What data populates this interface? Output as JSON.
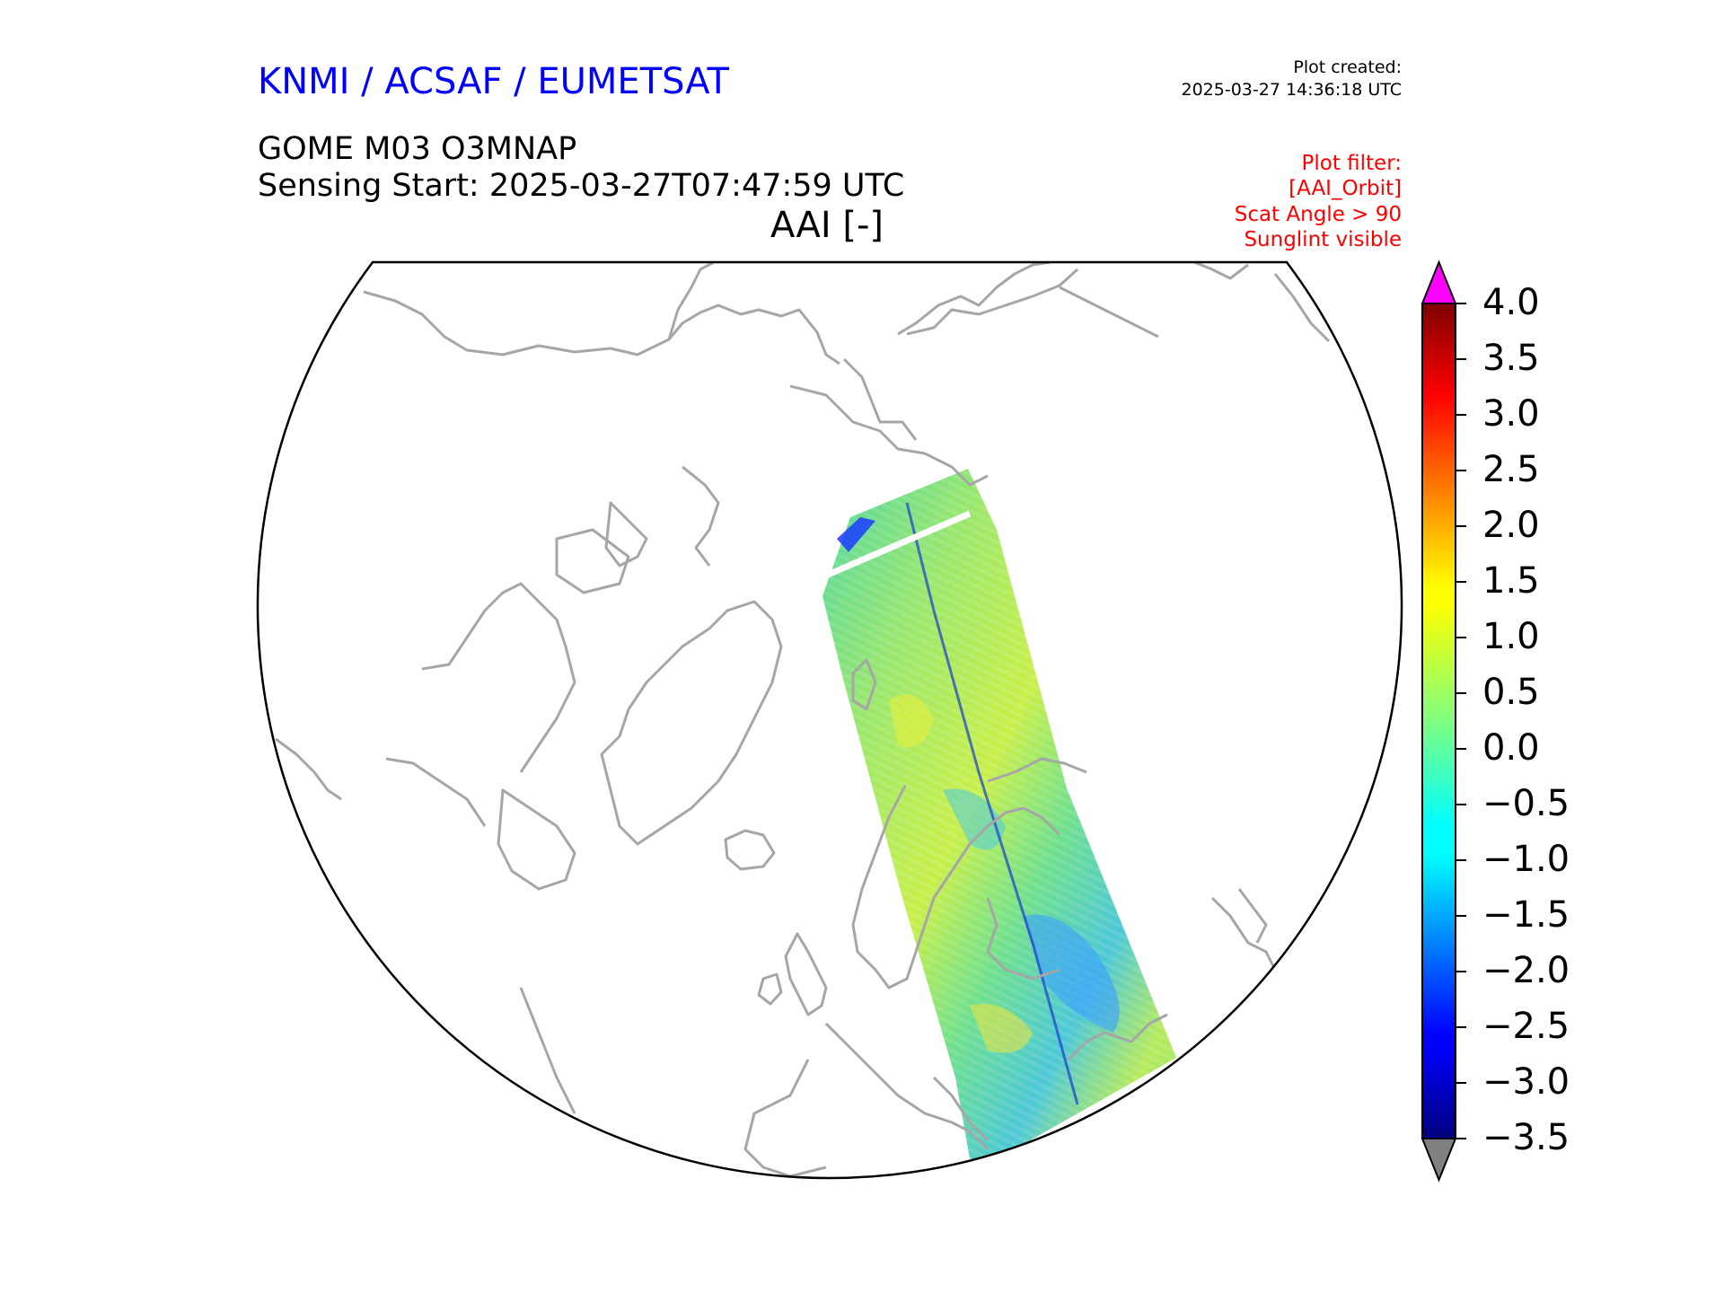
{
  "header": {
    "organization": "KNMI / ACSAF / EUMETSAT",
    "product": "GOME M03 O3MNAP",
    "sensing_start": "Sensing Start: 2025-03-27T07:47:59 UTC",
    "variable": "AAI [-]",
    "plot_created_label": "Plot created:",
    "plot_created_time": "2025-03-27 14:36:18 UTC"
  },
  "plot_filter": {
    "title": "Plot filter:",
    "lines": [
      "[AAI_Orbit]",
      "Scat Angle > 90",
      "Sunglint visible"
    ]
  },
  "colors": {
    "title": "#0000ff",
    "filter": "#ff0000",
    "coastline": "#a0a0a0",
    "over_color": "#ff00ff",
    "under_color": "#808080"
  },
  "colorbar": {
    "min": -3.5,
    "max": 4.0,
    "ticks": [
      "4.0",
      "3.5",
      "3.0",
      "2.5",
      "2.0",
      "1.5",
      "1.0",
      "0.5",
      "0.0",
      "−0.5",
      "−1.0",
      "−1.5",
      "−2.0",
      "−2.5",
      "−3.0",
      "−3.5"
    ],
    "tick_values": [
      4.0,
      3.5,
      3.0,
      2.5,
      2.0,
      1.5,
      1.0,
      0.5,
      0.0,
      -0.5,
      -1.0,
      -1.5,
      -2.0,
      -2.5,
      -3.0,
      -3.5
    ],
    "colormap": "jet",
    "extend": "both"
  }
}
